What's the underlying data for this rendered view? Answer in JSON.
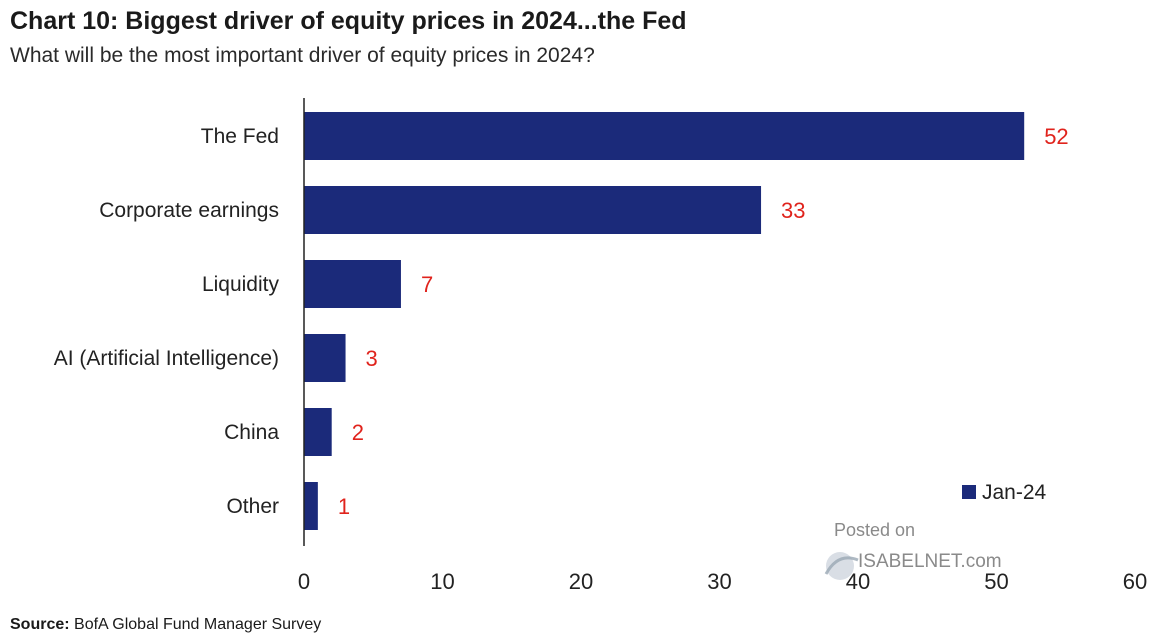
{
  "header": {
    "title": "Chart 10: Biggest driver of equity prices in 2024...the Fed",
    "subtitle": "What will be the most important driver of equity prices in 2024?"
  },
  "chart_data": {
    "type": "bar",
    "orientation": "horizontal",
    "categories": [
      "The Fed",
      "Corporate earnings",
      "Liquidity",
      "AI (Artificial Intelligence)",
      "China",
      "Other"
    ],
    "series": [
      {
        "name": "Jan-24",
        "values": [
          52,
          33,
          7,
          3,
          2,
          1
        ]
      }
    ],
    "xlim": [
      0,
      60
    ],
    "xticks": [
      0,
      10,
      20,
      30,
      40,
      50,
      60
    ],
    "grid": false,
    "legend_position": "bottom-right",
    "bar_color": "#1b2a7a",
    "label_color": "#e0231c"
  },
  "watermark": {
    "line1": "Posted on",
    "line2": "ISABELNET.com"
  },
  "footer": {
    "source_label": "Source:",
    "source_text": "BofA Global Fund Manager Survey"
  }
}
